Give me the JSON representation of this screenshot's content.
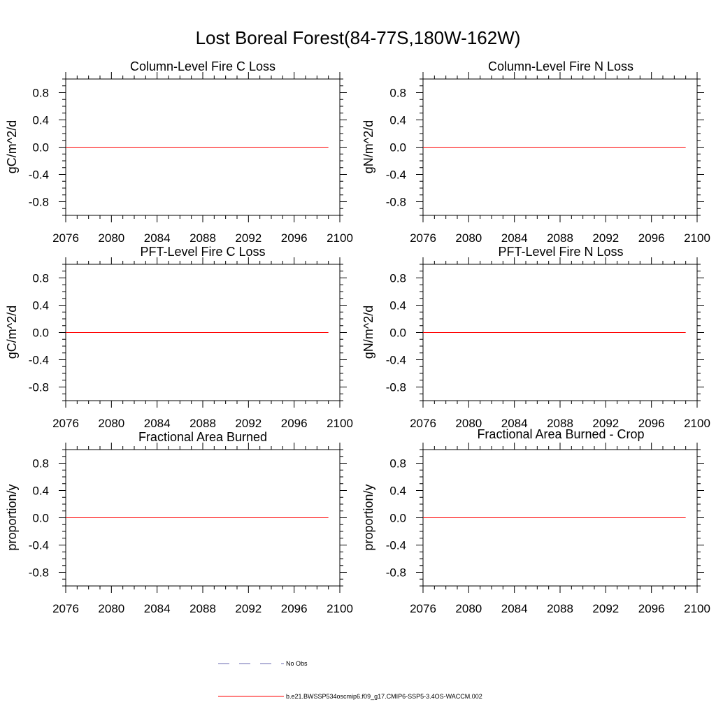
{
  "title": "Lost Boreal Forest(84-77S,180W-162W)",
  "chart_data": [
    {
      "type": "line",
      "title": "Column-Level Fire C Loss",
      "xlabel": "",
      "ylabel": "gC/m^2/d",
      "xlim": [
        2076,
        2100
      ],
      "ylim": [
        -1,
        1
      ],
      "x_ticks": [
        "2076",
        "2080",
        "2084",
        "2088",
        "2092",
        "2096",
        "2100"
      ],
      "y_ticks": [
        "0.8",
        "0.4",
        "0.0",
        "-0.4",
        "-0.8"
      ],
      "series": [
        {
          "name": "b.e21.BWSSP534oscmip6.f09_g17.CMIP6-SSP5-3.4OS-WACCM.002",
          "x": [
            2076,
            2099
          ],
          "y": [
            0,
            0
          ],
          "color": "#ff0000"
        }
      ]
    },
    {
      "type": "line",
      "title": "Column-Level Fire N Loss",
      "xlabel": "",
      "ylabel": "gN/m^2/d",
      "xlim": [
        2076,
        2100
      ],
      "ylim": [
        -1,
        1
      ],
      "x_ticks": [
        "2076",
        "2080",
        "2084",
        "2088",
        "2092",
        "2096",
        "2100"
      ],
      "y_ticks": [
        "0.8",
        "0.4",
        "0.0",
        "-0.4",
        "-0.8"
      ],
      "series": [
        {
          "name": "b.e21.BWSSP534oscmip6.f09_g17.CMIP6-SSP5-3.4OS-WACCM.002",
          "x": [
            2076,
            2099
          ],
          "y": [
            0,
            0
          ],
          "color": "#ff0000"
        }
      ]
    },
    {
      "type": "line",
      "title": "PFT-Level Fire C Loss",
      "xlabel": "",
      "ylabel": "gC/m^2/d",
      "xlim": [
        2076,
        2100
      ],
      "ylim": [
        -1,
        1
      ],
      "x_ticks": [
        "2076",
        "2080",
        "2084",
        "2088",
        "2092",
        "2096",
        "2100"
      ],
      "y_ticks": [
        "0.8",
        "0.4",
        "0.0",
        "-0.4",
        "-0.8"
      ],
      "series": [
        {
          "name": "b.e21.BWSSP534oscmip6.f09_g17.CMIP6-SSP5-3.4OS-WACCM.002",
          "x": [
            2076,
            2099
          ],
          "y": [
            0,
            0
          ],
          "color": "#ff0000"
        }
      ]
    },
    {
      "type": "line",
      "title": "PFT-Level Fire N Loss",
      "xlabel": "",
      "ylabel": "gN/m^2/d",
      "xlim": [
        2076,
        2100
      ],
      "ylim": [
        -1,
        1
      ],
      "x_ticks": [
        "2076",
        "2080",
        "2084",
        "2088",
        "2092",
        "2096",
        "2100"
      ],
      "y_ticks": [
        "0.8",
        "0.4",
        "0.0",
        "-0.4",
        "-0.8"
      ],
      "series": [
        {
          "name": "b.e21.BWSSP534oscmip6.f09_g17.CMIP6-SSP5-3.4OS-WACCM.002",
          "x": [
            2076,
            2099
          ],
          "y": [
            0,
            0
          ],
          "color": "#ff0000"
        }
      ]
    },
    {
      "type": "line",
      "title": "Fractional Area Burned",
      "xlabel": "",
      "ylabel": "proportion/y",
      "xlim": [
        2076,
        2100
      ],
      "ylim": [
        -1,
        1
      ],
      "x_ticks": [
        "2076",
        "2080",
        "2084",
        "2088",
        "2092",
        "2096",
        "2100"
      ],
      "y_ticks": [
        "0.8",
        "0.4",
        "0.0",
        "-0.4",
        "-0.8"
      ],
      "series": [
        {
          "name": "b.e21.BWSSP534oscmip6.f09_g17.CMIP6-SSP5-3.4OS-WACCM.002",
          "x": [
            2076,
            2099
          ],
          "y": [
            0,
            0
          ],
          "color": "#ff0000"
        }
      ]
    },
    {
      "type": "line",
      "title": "Fractional Area Burned - Crop",
      "xlabel": "",
      "ylabel": "proportion/y",
      "xlim": [
        2076,
        2100
      ],
      "ylim": [
        -1,
        1
      ],
      "x_ticks": [
        "2076",
        "2080",
        "2084",
        "2088",
        "2092",
        "2096",
        "2100"
      ],
      "y_ticks": [
        "0.8",
        "0.4",
        "0.0",
        "-0.4",
        "-0.8"
      ],
      "series": [
        {
          "name": "b.e21.BWSSP534oscmip6.f09_g17.CMIP6-SSP5-3.4OS-WACCM.002",
          "x": [
            2076,
            2099
          ],
          "y": [
            0,
            0
          ],
          "color": "#ff0000"
        }
      ]
    }
  ],
  "legend": {
    "placement": "bottom-center",
    "items": [
      {
        "label": "No Obs",
        "color": "#6a6ab0",
        "style": "dashed"
      },
      {
        "label": "b.e21.BWSSP534oscmip6.f09_g17.CMIP6-SSP5-3.4OS-WACCM.002",
        "color": "#ff0000",
        "style": "solid"
      }
    ]
  }
}
